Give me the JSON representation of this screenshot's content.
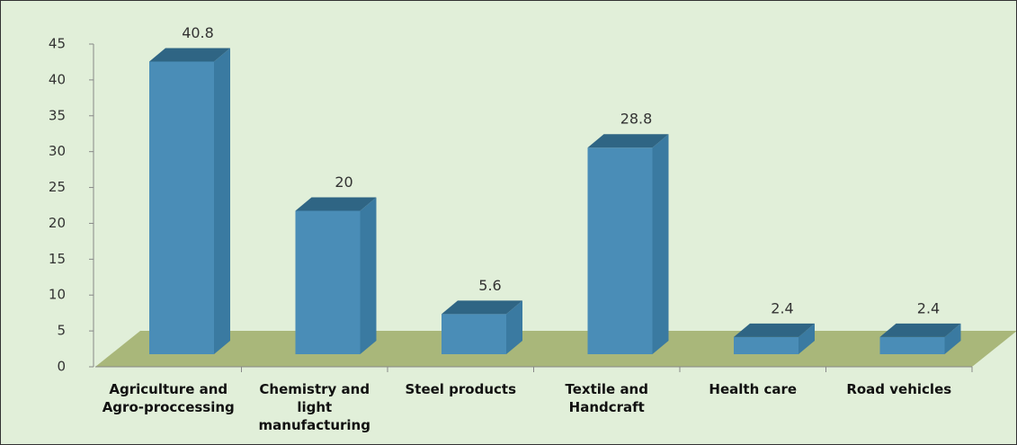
{
  "chart_data": {
    "type": "bar3d",
    "categories": [
      "Agriculture and Agro-proccessing",
      "Chemistry and light manufacturing",
      "Steel products",
      "Textile and Handcraft",
      "Health care",
      "Road vehicles"
    ],
    "values": [
      40.8,
      20,
      5.6,
      28.8,
      2.4,
      2.4
    ],
    "color": "#4a8db7",
    "floor_color": "#a9b77a",
    "ylim": [
      0,
      45
    ],
    "yticks": [
      0,
      5,
      10,
      15,
      20,
      25,
      30,
      35,
      40,
      45
    ]
  }
}
